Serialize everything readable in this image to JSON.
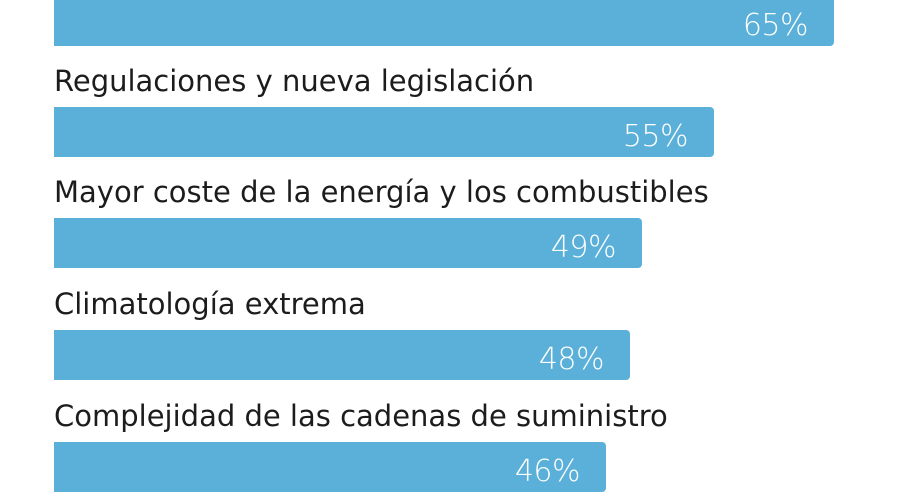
{
  "chart_data": {
    "type": "bar",
    "orientation": "horizontal",
    "bar_color": "#5AB0D8",
    "label_color": "#1C1C1C",
    "value_color": "#FFFFFF",
    "categories": [
      "",
      "Regulaciones y nueva legislación",
      "Mayor coste de la energía y los combustibles",
      "Climatología extrema",
      "Complejidad de las cadenas de suministro"
    ],
    "values": [
      65,
      55,
      49,
      48,
      46
    ],
    "value_labels": [
      "65%",
      "55%",
      "49%",
      "48%",
      "46%"
    ],
    "xlim": [
      0,
      100
    ]
  }
}
